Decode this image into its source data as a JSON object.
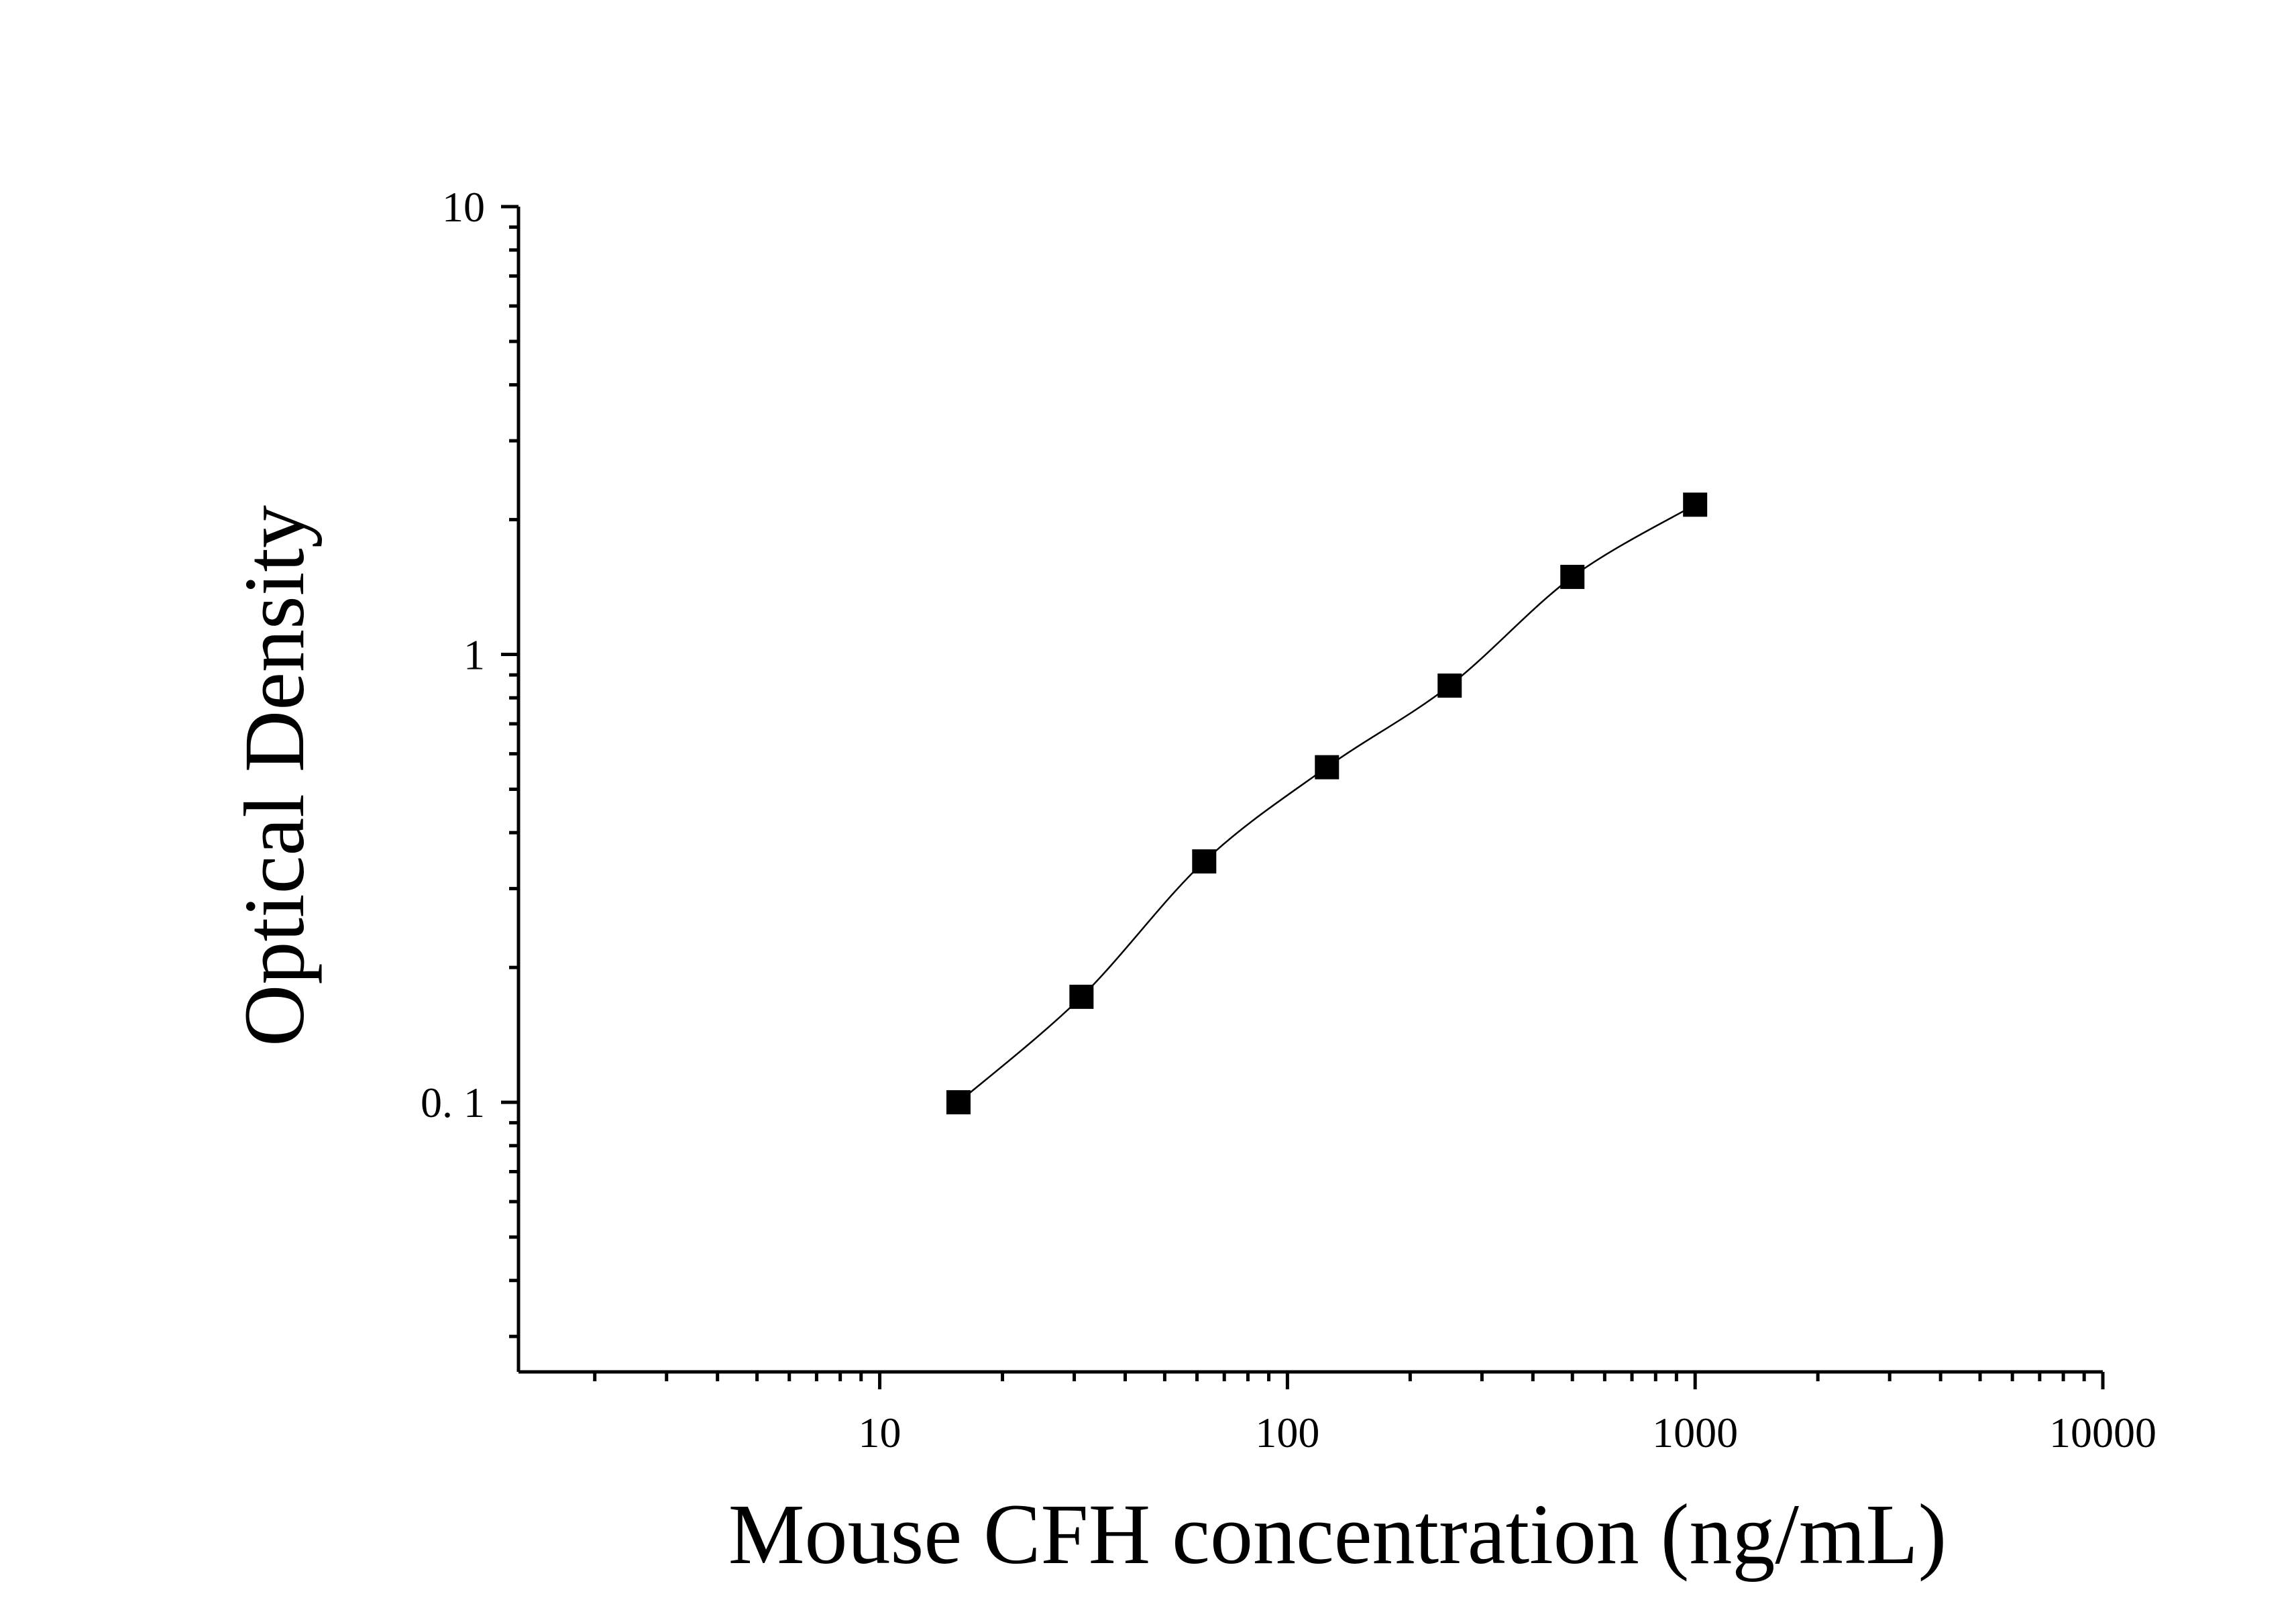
{
  "chart_data": {
    "type": "scatter",
    "xlabel": "Mouse CFH concentration (ng/mL)",
    "ylabel": "Optical Density",
    "xscale": "log",
    "yscale": "log",
    "xlim": [
      1.3,
      10000
    ],
    "ylim": [
      0.025,
      10
    ],
    "x_tick_labels": [
      "10",
      "100",
      "1000",
      "10000"
    ],
    "y_tick_labels": [
      {
        "value": 0.1,
        "label": "0. 1"
      },
      {
        "value": 1,
        "label": "1"
      },
      {
        "value": 10,
        "label": "10"
      }
    ],
    "grid": false,
    "series": [
      {
        "marker": "square",
        "color": "#000000",
        "x": [
          15.6,
          31.25,
          62.5,
          125,
          250,
          500,
          1000
        ],
        "y": [
          0.1,
          0.172,
          0.345,
          0.56,
          0.852,
          1.49,
          2.16
        ]
      }
    ],
    "fit_curve": {
      "color": "#000000",
      "x": [
        15.6,
        1000
      ]
    }
  }
}
